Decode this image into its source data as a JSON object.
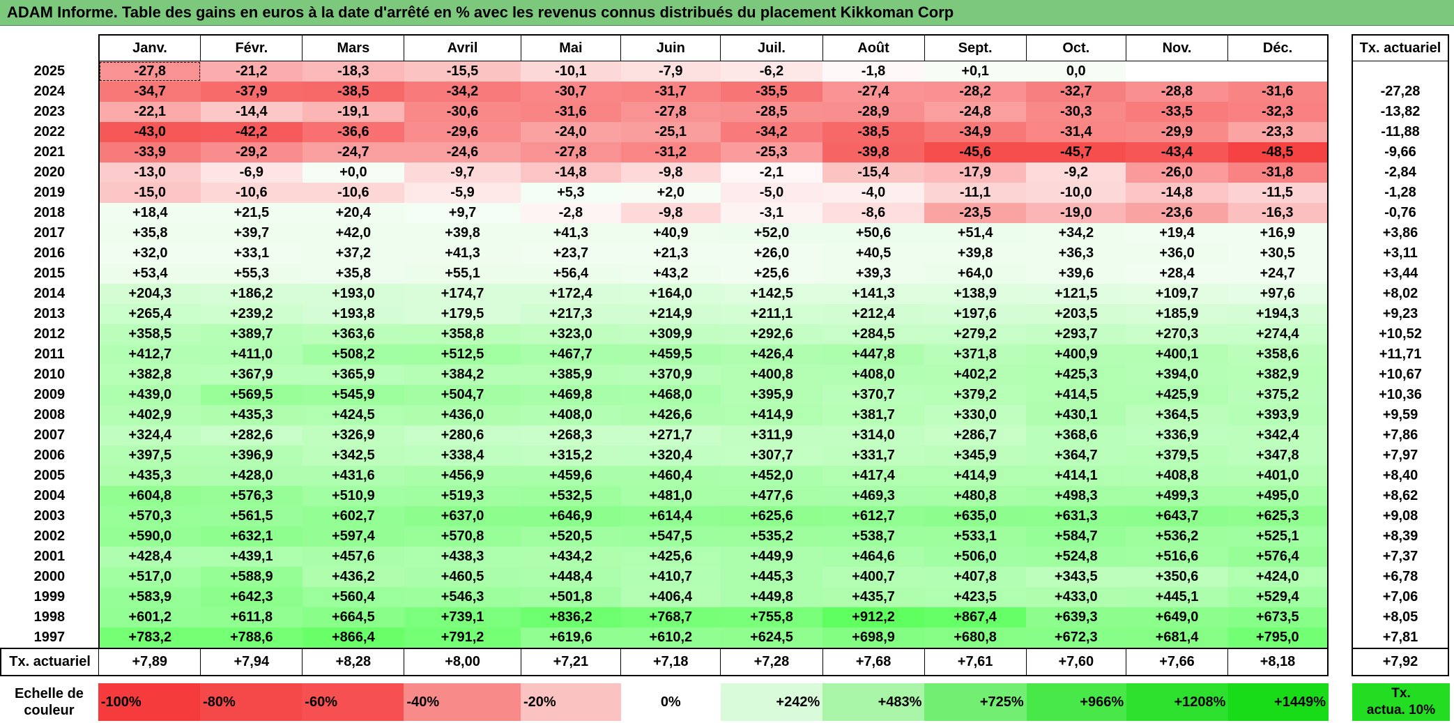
{
  "title": "ADAM Informe. Table des gains en euros à la date d'arrêté en % avec les revenus connus distribués du placement Kikkoman Corp",
  "months": [
    "Janv.",
    "Févr.",
    "Mars",
    "Avril",
    "Mai",
    "Juin",
    "Juil.",
    "Août",
    "Sept.",
    "Oct.",
    "Nov.",
    "Déc."
  ],
  "side_header": "Tx. actuariel",
  "rows": [
    {
      "year": "2025",
      "values": [
        "-27,8",
        "-21,2",
        "-18,3",
        "-15,5",
        "-10,1",
        "-7,9",
        "-6,2",
        "-1,8",
        "+0,1",
        "0,0",
        "",
        ""
      ],
      "tx": ""
    },
    {
      "year": "2024",
      "values": [
        "-34,7",
        "-37,9",
        "-38,5",
        "-34,2",
        "-30,7",
        "-31,7",
        "-35,5",
        "-27,4",
        "-28,2",
        "-32,7",
        "-28,8",
        "-31,6"
      ],
      "tx": "-27,28"
    },
    {
      "year": "2023",
      "values": [
        "-22,1",
        "-14,4",
        "-19,1",
        "-30,6",
        "-31,6",
        "-27,8",
        "-28,5",
        "-28,9",
        "-24,8",
        "-30,3",
        "-33,5",
        "-32,3"
      ],
      "tx": "-13,82"
    },
    {
      "year": "2022",
      "values": [
        "-43,0",
        "-42,2",
        "-36,6",
        "-29,6",
        "-24,0",
        "-25,1",
        "-34,2",
        "-38,5",
        "-34,9",
        "-31,4",
        "-29,9",
        "-23,3"
      ],
      "tx": "-11,88"
    },
    {
      "year": "2021",
      "values": [
        "-33,9",
        "-29,2",
        "-24,7",
        "-24,6",
        "-27,8",
        "-31,2",
        "-25,3",
        "-39,8",
        "-45,6",
        "-45,7",
        "-43,4",
        "-48,5"
      ],
      "tx": "-9,66"
    },
    {
      "year": "2020",
      "values": [
        "-13,0",
        "-6,9",
        "+0,0",
        "-9,7",
        "-14,8",
        "-9,8",
        "-2,1",
        "-15,4",
        "-17,9",
        "-9,2",
        "-26,0",
        "-31,8"
      ],
      "tx": "-2,84"
    },
    {
      "year": "2019",
      "values": [
        "-15,0",
        "-10,6",
        "-10,6",
        "-5,9",
        "+5,3",
        "+2,0",
        "-5,0",
        "-4,0",
        "-11,1",
        "-10,0",
        "-14,8",
        "-11,5"
      ],
      "tx": "-1,28"
    },
    {
      "year": "2018",
      "values": [
        "+18,4",
        "+21,5",
        "+20,4",
        "+9,7",
        "-2,8",
        "-9,8",
        "-3,1",
        "-8,6",
        "-23,5",
        "-19,0",
        "-23,6",
        "-16,3"
      ],
      "tx": "-0,76"
    },
    {
      "year": "2017",
      "values": [
        "+35,8",
        "+39,7",
        "+42,0",
        "+39,8",
        "+41,3",
        "+40,9",
        "+52,0",
        "+50,6",
        "+51,4",
        "+34,2",
        "+19,4",
        "+16,9"
      ],
      "tx": "+3,86"
    },
    {
      "year": "2016",
      "values": [
        "+32,0",
        "+33,1",
        "+37,2",
        "+41,3",
        "+23,7",
        "+21,3",
        "+26,0",
        "+40,5",
        "+39,8",
        "+36,3",
        "+36,0",
        "+30,5"
      ],
      "tx": "+3,11"
    },
    {
      "year": "2015",
      "values": [
        "+53,4",
        "+55,3",
        "+35,8",
        "+55,1",
        "+56,4",
        "+43,2",
        "+25,6",
        "+39,3",
        "+64,0",
        "+39,6",
        "+28,4",
        "+24,7"
      ],
      "tx": "+3,44"
    },
    {
      "year": "2014",
      "values": [
        "+204,3",
        "+186,2",
        "+193,0",
        "+174,7",
        "+172,4",
        "+164,0",
        "+142,5",
        "+141,3",
        "+138,9",
        "+121,5",
        "+109,7",
        "+97,6"
      ],
      "tx": "+8,02"
    },
    {
      "year": "2013",
      "values": [
        "+265,4",
        "+239,2",
        "+193,8",
        "+179,5",
        "+217,3",
        "+214,9",
        "+211,1",
        "+212,4",
        "+197,6",
        "+203,5",
        "+185,9",
        "+194,3"
      ],
      "tx": "+9,23"
    },
    {
      "year": "2012",
      "values": [
        "+358,5",
        "+389,7",
        "+363,6",
        "+358,8",
        "+323,0",
        "+309,9",
        "+292,6",
        "+284,5",
        "+279,2",
        "+293,7",
        "+270,3",
        "+274,4"
      ],
      "tx": "+10,52"
    },
    {
      "year": "2011",
      "values": [
        "+412,7",
        "+411,0",
        "+508,2",
        "+512,5",
        "+467,7",
        "+459,5",
        "+426,4",
        "+447,8",
        "+371,8",
        "+400,9",
        "+400,1",
        "+358,6"
      ],
      "tx": "+11,71"
    },
    {
      "year": "2010",
      "values": [
        "+382,8",
        "+367,9",
        "+365,9",
        "+384,2",
        "+385,9",
        "+370,9",
        "+400,8",
        "+408,0",
        "+402,2",
        "+425,3",
        "+394,0",
        "+382,9"
      ],
      "tx": "+10,67"
    },
    {
      "year": "2009",
      "values": [
        "+439,0",
        "+569,5",
        "+545,9",
        "+504,7",
        "+469,8",
        "+468,0",
        "+395,9",
        "+370,7",
        "+379,2",
        "+414,5",
        "+425,9",
        "+375,2"
      ],
      "tx": "+10,36"
    },
    {
      "year": "2008",
      "values": [
        "+402,9",
        "+435,3",
        "+424,5",
        "+436,0",
        "+408,0",
        "+426,6",
        "+414,9",
        "+381,7",
        "+330,0",
        "+430,1",
        "+364,5",
        "+393,9"
      ],
      "tx": "+9,59"
    },
    {
      "year": "2007",
      "values": [
        "+324,4",
        "+282,6",
        "+326,9",
        "+280,6",
        "+268,3",
        "+271,7",
        "+311,9",
        "+314,0",
        "+286,7",
        "+368,6",
        "+336,9",
        "+342,4"
      ],
      "tx": "+7,86"
    },
    {
      "year": "2006",
      "values": [
        "+397,5",
        "+396,9",
        "+342,5",
        "+338,4",
        "+315,2",
        "+320,4",
        "+307,7",
        "+331,7",
        "+345,9",
        "+364,7",
        "+379,5",
        "+347,8"
      ],
      "tx": "+7,97"
    },
    {
      "year": "2005",
      "values": [
        "+435,3",
        "+428,0",
        "+431,6",
        "+456,9",
        "+459,6",
        "+460,4",
        "+452,0",
        "+417,4",
        "+414,9",
        "+414,1",
        "+408,8",
        "+401,0"
      ],
      "tx": "+8,40"
    },
    {
      "year": "2004",
      "values": [
        "+604,8",
        "+576,3",
        "+510,9",
        "+519,3",
        "+532,5",
        "+481,0",
        "+477,6",
        "+469,3",
        "+480,8",
        "+498,3",
        "+499,3",
        "+495,0"
      ],
      "tx": "+8,62"
    },
    {
      "year": "2003",
      "values": [
        "+570,3",
        "+561,5",
        "+602,7",
        "+637,0",
        "+646,9",
        "+614,4",
        "+625,6",
        "+612,7",
        "+635,0",
        "+631,3",
        "+643,7",
        "+625,3"
      ],
      "tx": "+9,08"
    },
    {
      "year": "2002",
      "values": [
        "+590,0",
        "+632,1",
        "+597,4",
        "+570,8",
        "+520,5",
        "+547,5",
        "+535,2",
        "+538,7",
        "+533,1",
        "+584,7",
        "+536,2",
        "+525,1"
      ],
      "tx": "+8,39"
    },
    {
      "year": "2001",
      "values": [
        "+428,4",
        "+439,1",
        "+457,6",
        "+438,3",
        "+434,2",
        "+425,6",
        "+449,9",
        "+464,6",
        "+506,0",
        "+524,8",
        "+516,6",
        "+576,4"
      ],
      "tx": "+7,37"
    },
    {
      "year": "2000",
      "values": [
        "+517,0",
        "+588,9",
        "+436,2",
        "+460,5",
        "+448,4",
        "+410,7",
        "+445,3",
        "+400,7",
        "+407,8",
        "+343,5",
        "+350,6",
        "+424,0"
      ],
      "tx": "+6,78"
    },
    {
      "year": "1999",
      "values": [
        "+583,9",
        "+642,3",
        "+560,4",
        "+546,3",
        "+501,8",
        "+406,4",
        "+449,8",
        "+435,7",
        "+423,5",
        "+433,0",
        "+445,1",
        "+529,4"
      ],
      "tx": "+7,06"
    },
    {
      "year": "1998",
      "values": [
        "+601,2",
        "+611,8",
        "+664,5",
        "+739,1",
        "+836,2",
        "+768,7",
        "+755,8",
        "+912,2",
        "+867,4",
        "+639,3",
        "+649,0",
        "+673,5"
      ],
      "tx": "+8,05"
    },
    {
      "year": "1997",
      "values": [
        "+783,2",
        "+788,6",
        "+866,4",
        "+791,2",
        "+619,6",
        "+610,2",
        "+624,5",
        "+698,9",
        "+680,8",
        "+672,3",
        "+681,4",
        "+795,0"
      ],
      "tx": "+7,81"
    }
  ],
  "footer": {
    "label": "Tx. actuariel",
    "values": [
      "+7,89",
      "+7,94",
      "+8,28",
      "+8,00",
      "+7,21",
      "+7,18",
      "+7,28",
      "+7,68",
      "+7,61",
      "+7,60",
      "+7,66",
      "+8,18"
    ],
    "tx": "+7,92"
  },
  "scale": {
    "label_line1": "Echelle de",
    "label_line2": "couleur",
    "items": [
      {
        "label": "-100%",
        "color": "#f53b3b"
      },
      {
        "label": "-80%",
        "color": "#f54848"
      },
      {
        "label": "-60%",
        "color": "#f65050"
      },
      {
        "label": "-40%",
        "color": "#f88a8a"
      },
      {
        "label": "-20%",
        "color": "#fbc2c2"
      },
      {
        "label": "0%",
        "color": "#ffffff"
      },
      {
        "label": "+242%",
        "color": "#d9fbd9"
      },
      {
        "label": "+483%",
        "color": "#a8f5a8"
      },
      {
        "label": "+725%",
        "color": "#72ee72"
      },
      {
        "label": "+966%",
        "color": "#48e848"
      },
      {
        "label": "+1208%",
        "color": "#2de02d"
      },
      {
        "label": "+1449%",
        "color": "#18dc18"
      }
    ],
    "tx_line1": "Tx.",
    "tx_line2": "actua. 10%",
    "tx_color": "#22dd22"
  },
  "colors": {
    "title_bg": "#7cc87c"
  }
}
